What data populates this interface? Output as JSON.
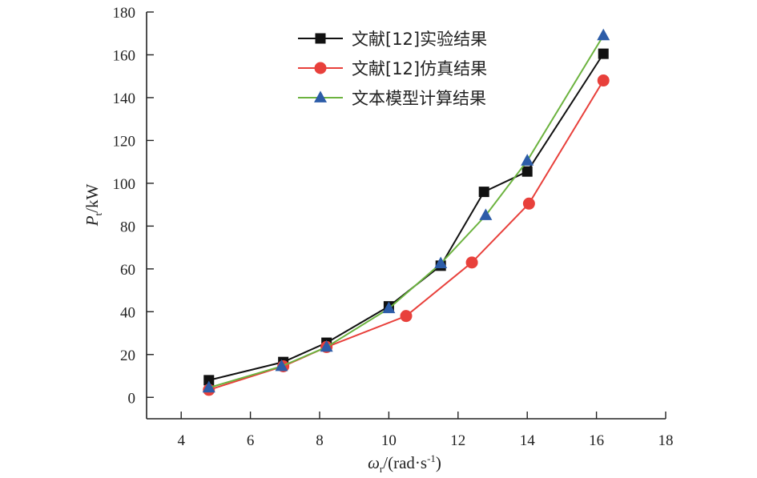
{
  "chart_data": {
    "type": "line",
    "title": "",
    "xlabel_main": "ω",
    "xlabel_sub": "r",
    "xlabel_rest": "/(rad·s",
    "xlabel_sup": "-1",
    "xlabel_close": ")",
    "ylabel_main": "P",
    "ylabel_sub": "t",
    "ylabel_rest": "/kW",
    "xlim": [
      3,
      18
    ],
    "ylim": [
      -10,
      180
    ],
    "xticks": [
      4,
      6,
      8,
      10,
      12,
      14,
      16,
      18
    ],
    "yticks": [
      0,
      20,
      40,
      60,
      80,
      100,
      120,
      140,
      160,
      180
    ],
    "legend_position": "top-center",
    "series": [
      {
        "name": "文献[12]实验结果",
        "color": "#111111",
        "marker": "square",
        "x": [
          4.8,
          6.95,
          8.2,
          10.0,
          11.5,
          12.75,
          14.0,
          16.2
        ],
        "y": [
          8,
          16.5,
          25.5,
          42.5,
          61.5,
          96,
          105.5,
          160.5
        ]
      },
      {
        "name": "文献[12]仿真结果",
        "color": "#e8403b",
        "marker": "circle",
        "x": [
          4.8,
          6.95,
          8.2,
          10.5,
          12.4,
          14.05,
          16.2
        ],
        "y": [
          3.5,
          14.5,
          23.5,
          38,
          63,
          90.5,
          148
        ]
      },
      {
        "name": "文本模型计算结果",
        "color": "#6cb33f",
        "marker_color": "#2c5ca8",
        "marker": "triangle",
        "x": [
          4.8,
          6.9,
          8.2,
          10.0,
          11.5,
          12.8,
          14.0,
          16.2
        ],
        "y": [
          4.5,
          14.5,
          23.5,
          41.5,
          62.5,
          85,
          110.5,
          169
        ]
      }
    ]
  }
}
